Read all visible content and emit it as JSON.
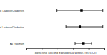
{
  "chart_data": {
    "type": "forest",
    "categories": [
      "No Labour/Diabetes",
      "Induced Labour/Diabetes",
      "All Women"
    ],
    "values": [
      7.05,
      6.9,
      7.3
    ],
    "ci_low": [
      3.9,
      5.1,
      6.25
    ],
    "ci_high": [
      9.8,
      9.8,
      8.4
    ],
    "x_label": "Switching Second Episodes/4 Weeks (95% CI)",
    "xlim": [
      0,
      10
    ],
    "xticks": [
      0,
      2,
      4,
      6,
      8,
      10
    ],
    "tick_labels": "y",
    "marker": "square",
    "color": "#000000"
  }
}
